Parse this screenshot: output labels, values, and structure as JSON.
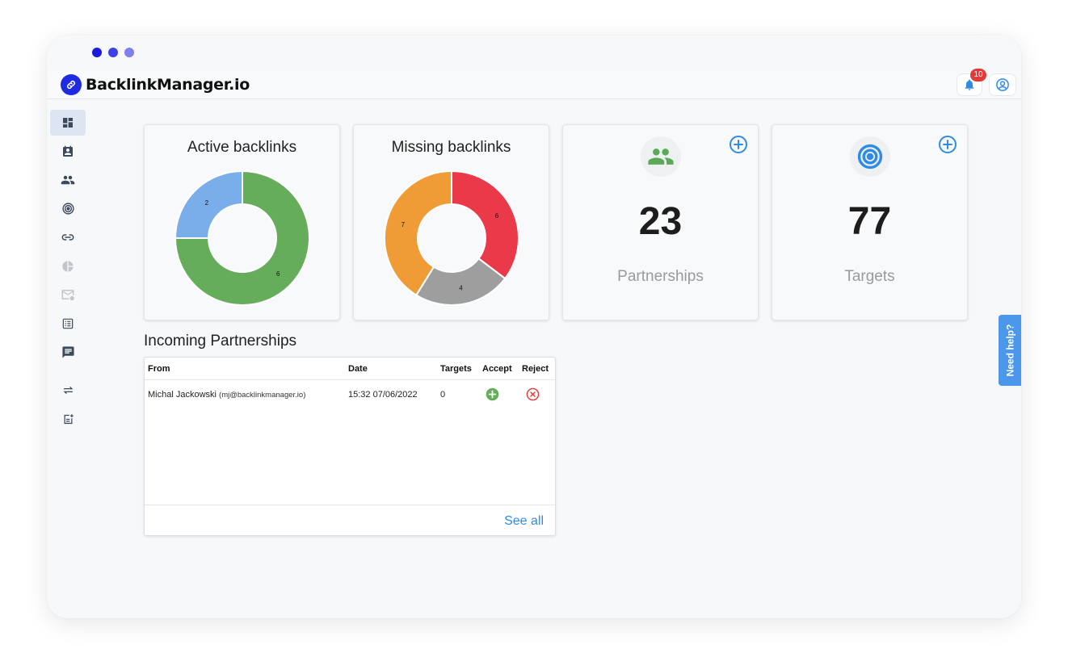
{
  "window": {
    "dot_colors": [
      "#1a1ad8",
      "#3f3fe6",
      "#7f7fee"
    ]
  },
  "header": {
    "logo_text": "BacklinkManager.io",
    "notification_count": "10"
  },
  "sidebar": {
    "items": [
      {
        "icon": "dashboard-icon",
        "active": true
      },
      {
        "icon": "contact-card-icon",
        "active": false
      },
      {
        "icon": "people-icon",
        "active": false
      },
      {
        "icon": "target-icon",
        "active": false
      },
      {
        "icon": "link-icon",
        "active": false
      },
      {
        "icon": "pie-chart-icon",
        "active": false,
        "disabled": true
      },
      {
        "icon": "mail-icon",
        "active": false,
        "disabled": true
      },
      {
        "icon": "list-icon",
        "active": false
      },
      {
        "icon": "chat-icon",
        "active": false
      },
      {
        "icon": "swap-icon",
        "active": false
      },
      {
        "icon": "note-add-icon",
        "active": false
      }
    ]
  },
  "cards": {
    "active": {
      "title": "Active backlinks"
    },
    "missing": {
      "title": "Missing backlinks"
    },
    "partnerships": {
      "value": "23",
      "label": "Partnerships"
    },
    "targets": {
      "value": "77",
      "label": "Targets"
    }
  },
  "chart_data": [
    {
      "type": "pie",
      "title": "Active backlinks",
      "labels": [
        "",
        ""
      ],
      "values": [
        6,
        2
      ],
      "colors": [
        "#66ad5b",
        "#7aaeea"
      ]
    },
    {
      "type": "pie",
      "title": "Missing backlinks",
      "labels": [
        "",
        "",
        ""
      ],
      "values": [
        6,
        4,
        7
      ],
      "colors": [
        "#ea3a4a",
        "#9e9e9e",
        "#f09c36"
      ]
    }
  ],
  "partnerships_table": {
    "title": "Incoming Partnerships",
    "columns": [
      "From",
      "Date",
      "Targets",
      "Accept",
      "Reject"
    ],
    "rows": [
      {
        "name": "Michal Jackowski",
        "email": "(mj@backlinkmanager.io)",
        "date": "15:32 07/06/2022",
        "targets": "0"
      }
    ],
    "see_all": "See all"
  },
  "help_tab": {
    "label": "Need help?"
  },
  "colors": {
    "accent": "#2f8be6",
    "accept": "#66ad5b",
    "reject": "#e53935"
  }
}
